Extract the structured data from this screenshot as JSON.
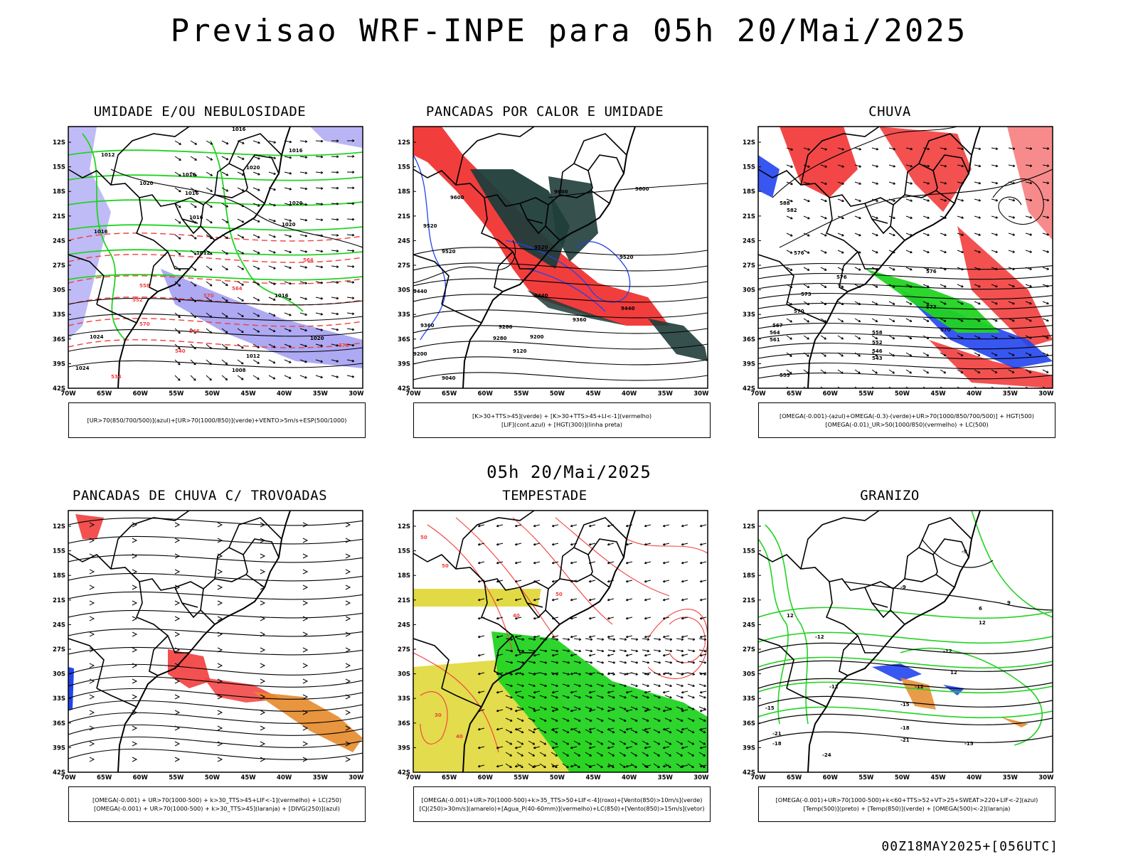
{
  "header": {
    "title": "Previsao WRF-INPE  para 05h 20/Mai/2025"
  },
  "middle": {
    "title": "05h 20/Mai/2025"
  },
  "footer": {
    "stamp": "00Z18MAY2025+[056UTC]"
  },
  "axes": {
    "lat_labels": [
      "12S",
      "15S",
      "18S",
      "21S",
      "24S",
      "27S",
      "30S",
      "33S",
      "36S",
      "39S",
      "42S"
    ],
    "lon_labels": [
      "70W",
      "65W",
      "60W",
      "55W",
      "50W",
      "45W",
      "40W",
      "35W",
      "30W"
    ]
  },
  "colors": {
    "red": "#f23d3d",
    "green": "#22d322",
    "blue": "#2244ee",
    "lavender": "#8a84ee",
    "darkteal": "#1f3d3a",
    "yellow": "#e0d83a",
    "orange": "#e58a2a",
    "black": "#000000"
  },
  "panels": [
    {
      "title": "UMIDADE E/OU NEBULOSIDADE",
      "legend": [
        "[UR>70(850/700/500)](azul)+[UR>70(1000/850)](verde)+VENTO>5m/s+ESP(500/1000)"
      ],
      "contour_labels": [
        "1016",
        "1012",
        "1020",
        "1016",
        "1016",
        "1020",
        "1016",
        "1012",
        "1016",
        "1020",
        "1016",
        "1024",
        "1020",
        "1016",
        "1020",
        "1012",
        "1008",
        "1024",
        "570",
        "564",
        "558",
        "552",
        "546",
        "540",
        "534",
        "576",
        "570",
        "564"
      ]
    },
    {
      "title": "PANCADAS POR CALOR E UMIDADE",
      "legend": [
        "[K>30+TTS>45](verde) + [K>30+TTS>45+LI<-1](vermelho)",
        "[LIF](cont.azul) + [HGT(300)](linha preta)"
      ],
      "contour_labels": [
        "9600",
        "9600",
        "9600",
        "9520",
        "9520",
        "9520",
        "9440",
        "9440",
        "9440",
        "9360",
        "9360",
        "9280",
        "9280",
        "9200",
        "9200",
        "9120",
        "9040",
        "9520"
      ]
    },
    {
      "title": "CHUVA",
      "legend": [
        "[OMEGA(-0.001)-(azul)+OMEGA(-0.3)-(verde)+UR>70(1000/850/700/500)] + HGT(500)",
        "[OMEGA(-0.01)_UR>50(1000/850)(vermelho) + LC(500)"
      ],
      "contour_labels": [
        "588",
        "582",
        "576",
        "576",
        "573",
        "570",
        "567",
        "564",
        "561",
        "558",
        "552",
        "546",
        "543",
        "555",
        "576",
        "573",
        "570"
      ]
    },
    {
      "title": "PANCADAS DE CHUVA C/ TROVOADAS",
      "legend": [
        "[OMEGA(-0.001) + UR>70(1000-500) + k>30_TTS>45+LIF<-1](vermelho) + LC(250)",
        "[OMEGA(-0.001) + UR>70(1000-500) + k>30_TTS>45](laranja) + [DIVG(250)](azul)"
      ],
      "contour_labels": []
    },
    {
      "title": "TEMPESTADE",
      "legend": [
        "[OMEGA(-0.001)+UR>70(1000-500)+k>35_TTS>50+LIF<-4](roxo)+[Vento(850)>10m/s](verde)",
        "[CJ(250)>30m/s](amarelo)+[Agua_P(40-60mm)](vermelho)+LC(850)+[Vento(850)>15m/s](vetor)"
      ],
      "contour_labels": [
        "50",
        "50",
        "40",
        "50",
        "30",
        "40"
      ]
    },
    {
      "title": "GRANIZO",
      "legend": [
        "[OMEGA(-0.001)+UR>70(1000-500)+k<60+TTS>52+VT>25+SWEAT>220+LIF<-2](azul)",
        "[Temp(500)](preto) + [Temp(850)](verde) + [OMEGA(500)<-2](laranja)"
      ],
      "contour_labels": [
        "-9",
        "-9",
        "-12",
        "-12",
        "-12",
        "-12",
        "-15",
        "-15",
        "-15",
        "-18",
        "-18",
        "-21",
        "-21",
        "-24",
        "12",
        "12",
        "12",
        "9",
        "6"
      ]
    }
  ]
}
